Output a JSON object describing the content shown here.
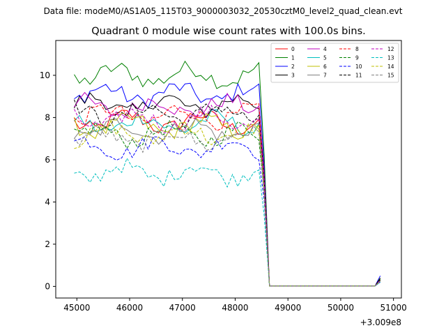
{
  "figure": {
    "suptitle": "Data file: modeM0/AS1A05_115T03_9000003032_20530cztM0_level2_quad_clean.evt"
  },
  "chart_data": {
    "type": "line",
    "title": "Quadrant 0 module wise count rates with 100.0s bins.",
    "xlabel": "",
    "ylabel": "",
    "x_offset_label": "+3.009e8",
    "xlim": [
      44600,
      51150
    ],
    "ylim": [
      -0.55,
      11.65
    ],
    "xticks": [
      45000,
      46000,
      47000,
      48000,
      49000,
      50000,
      51000
    ],
    "xtick_labels": [
      "45000",
      "46000",
      "47000",
      "48000",
      "49000",
      "50000",
      "51000"
    ],
    "yticks": [
      0,
      2,
      4,
      6,
      8,
      10
    ],
    "ytick_labels": [
      "0",
      "2",
      "4",
      "6",
      "8",
      "10"
    ],
    "x_start": 44950,
    "x_step": 100,
    "gap_start": 48650,
    "gap_end": 50650,
    "final_x": 50750,
    "legend_position": "upper right",
    "legend_columns": 4,
    "series": [
      {
        "name": "0",
        "color": "#ff0000",
        "dashed": false,
        "active_mean": 7.8,
        "last": 0.3
      },
      {
        "name": "1",
        "color": "#008000",
        "dashed": false,
        "active_mean": 10.0,
        "last": 0.35
      },
      {
        "name": "2",
        "color": "#0000ff",
        "dashed": false,
        "active_mean": 9.1,
        "last": 0.5
      },
      {
        "name": "3",
        "color": "#000000",
        "dashed": false,
        "active_mean": 8.6,
        "last": 0.4
      },
      {
        "name": "4",
        "color": "#bf00bf",
        "dashed": false,
        "active_mean": 8.5,
        "last": 0.3
      },
      {
        "name": "5",
        "color": "#00bfbf",
        "dashed": false,
        "active_mean": 7.7,
        "last": 0.3
      },
      {
        "name": "6",
        "color": "#bfbf00",
        "dashed": false,
        "active_mean": 7.6,
        "last": 0.3
      },
      {
        "name": "7",
        "color": "#808080",
        "dashed": false,
        "active_mean": 7.4,
        "last": 0.25
      },
      {
        "name": "8",
        "color": "#ff0000",
        "dashed": true,
        "active_mean": 8.1,
        "last": 0.3
      },
      {
        "name": "9",
        "color": "#008000",
        "dashed": true,
        "active_mean": 7.2,
        "last": 0.25
      },
      {
        "name": "10",
        "color": "#0000ff",
        "dashed": true,
        "active_mean": 6.6,
        "last": 0.2
      },
      {
        "name": "11",
        "color": "#000000",
        "dashed": true,
        "active_mean": 8.2,
        "last": 0.3
      },
      {
        "name": "12",
        "color": "#bf00bf",
        "dashed": true,
        "active_mean": 7.9,
        "last": 0.3
      },
      {
        "name": "13",
        "color": "#00bfbf",
        "dashed": true,
        "active_mean": 5.4,
        "last": 0.2
      },
      {
        "name": "14",
        "color": "#bfbf00",
        "dashed": true,
        "active_mean": 7.2,
        "last": 0.25
      },
      {
        "name": "15",
        "color": "#808080",
        "dashed": true,
        "active_mean": 7.0,
        "last": 0.25
      }
    ]
  }
}
